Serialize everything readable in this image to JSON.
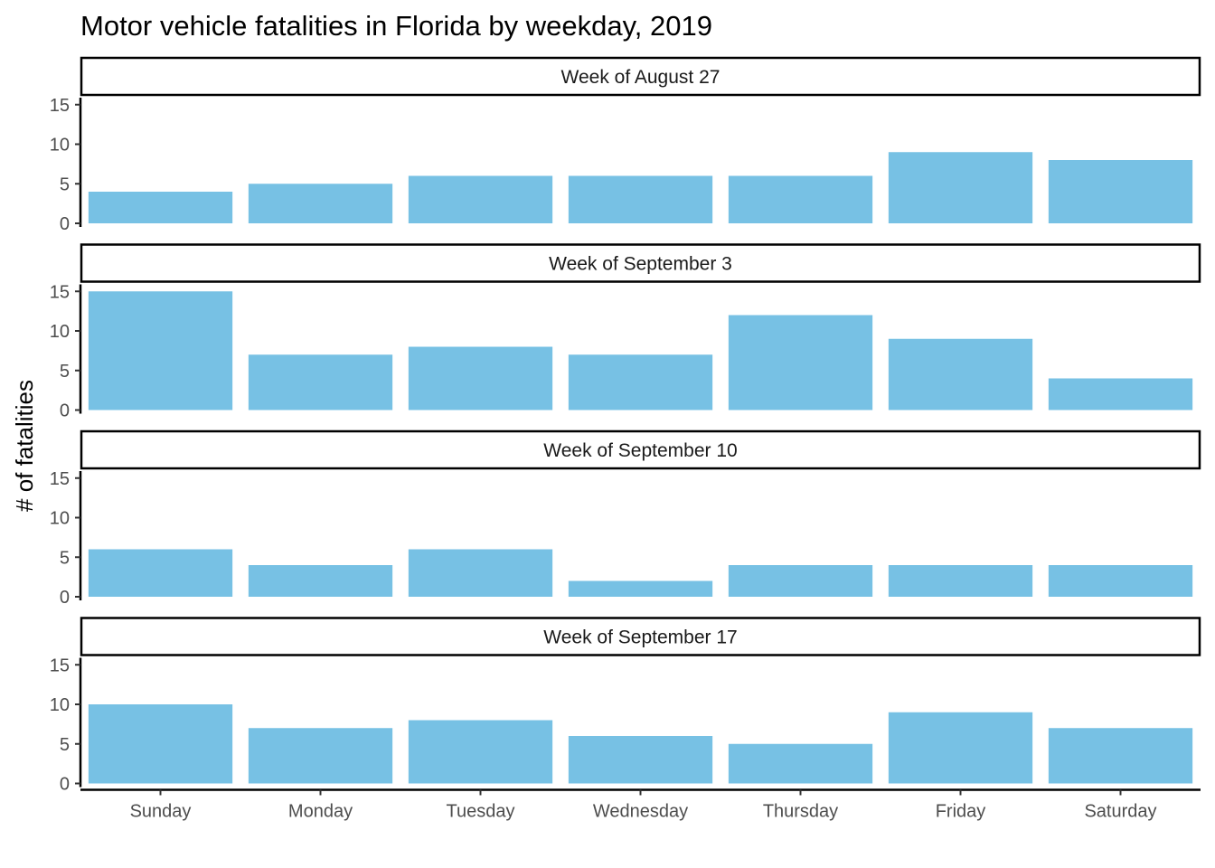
{
  "chart_data": {
    "type": "bar",
    "title": "Motor vehicle fatalities in Florida by weekday, 2019",
    "xlabel": "",
    "ylabel": "# of fatalities",
    "categories": [
      "Sunday",
      "Monday",
      "Tuesday",
      "Wednesday",
      "Thursday",
      "Friday",
      "Saturday"
    ],
    "ylim": [
      0,
      15
    ],
    "yticks": [
      "0",
      "5",
      "10",
      "15"
    ],
    "bar_color": "#77C1E4",
    "grid": false,
    "legend": "none",
    "facets": [
      {
        "label": "Week of August 27",
        "values": [
          4,
          5,
          6,
          6,
          6,
          9,
          8
        ]
      },
      {
        "label": "Week of September 3",
        "values": [
          15,
          7,
          8,
          7,
          12,
          9,
          4
        ]
      },
      {
        "label": "Week of September 10",
        "values": [
          6,
          4,
          6,
          2,
          4,
          4,
          4
        ]
      },
      {
        "label": "Week of September 17",
        "values": [
          10,
          7,
          8,
          6,
          5,
          9,
          7
        ]
      }
    ]
  }
}
